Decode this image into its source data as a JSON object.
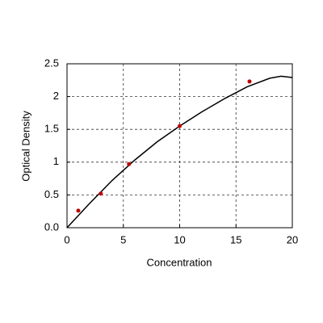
{
  "chart_data": {
    "type": "scatter",
    "x_label": "Concentration",
    "y_label": "Optical Density",
    "xlim": [
      0,
      20
    ],
    "xticks": [
      0,
      5,
      10,
      15,
      20
    ],
    "ylim": [
      0,
      2.5
    ],
    "yticks": [
      {
        "value": 0,
        "label": "0.0"
      },
      0.5,
      1,
      1.5,
      2,
      2.5
    ],
    "grid": true,
    "series": [
      {
        "mode": "line",
        "color": "#000000",
        "x": [
          0,
          2,
          4,
          6,
          8,
          10,
          12,
          14,
          16,
          18,
          19,
          20
        ],
        "values": [
          0,
          0.37,
          0.72,
          1.03,
          1.31,
          1.55,
          1.77,
          1.97,
          2.15,
          2.28,
          2.31,
          2.29
        ]
      },
      {
        "mode": "markers",
        "color": "#c00000",
        "x": [
          1,
          3,
          5.5,
          10,
          16.2
        ],
        "values": [
          0.26,
          0.52,
          0.97,
          1.55,
          2.23
        ]
      }
    ]
  }
}
